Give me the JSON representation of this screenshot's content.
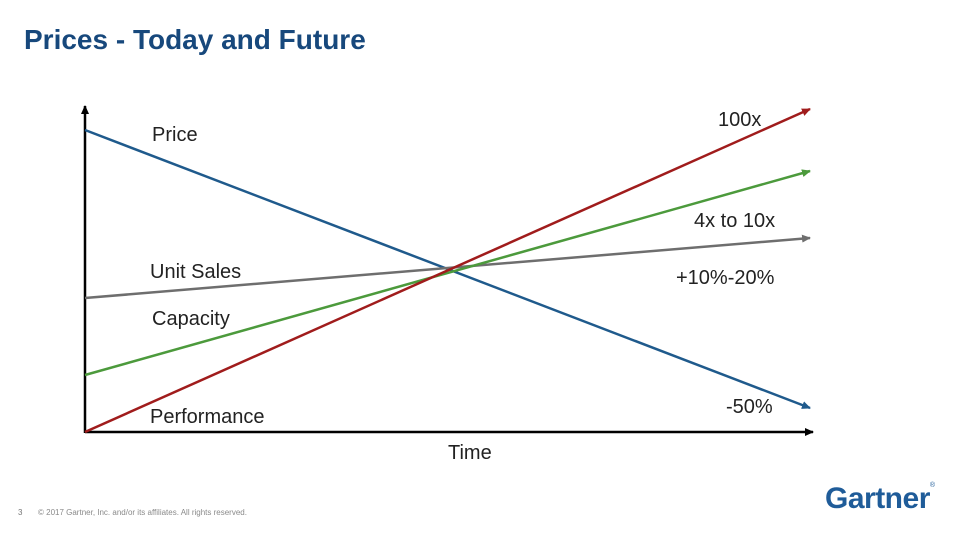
{
  "slide": {
    "title": "Prices - Today and Future",
    "page_number": "3",
    "copyright": "© 2017 Gartner, Inc. and/or its affiliates. All rights reserved.",
    "logo": "Gartner",
    "logo_mark": "®"
  },
  "diagram": {
    "x_axis_label": "Time",
    "lines": [
      {
        "name": "Price",
        "color": "#1f5a8c",
        "change_label": "-50%"
      },
      {
        "name": "Unit Sales",
        "color": "#6e6e6e",
        "change_label": "+10%-20%"
      },
      {
        "name": "Capacity",
        "color": "#4c9a3c",
        "change_label": "4x to 10x"
      },
      {
        "name": "Performance",
        "color": "#a01c1c",
        "change_label": "100x"
      }
    ]
  }
}
